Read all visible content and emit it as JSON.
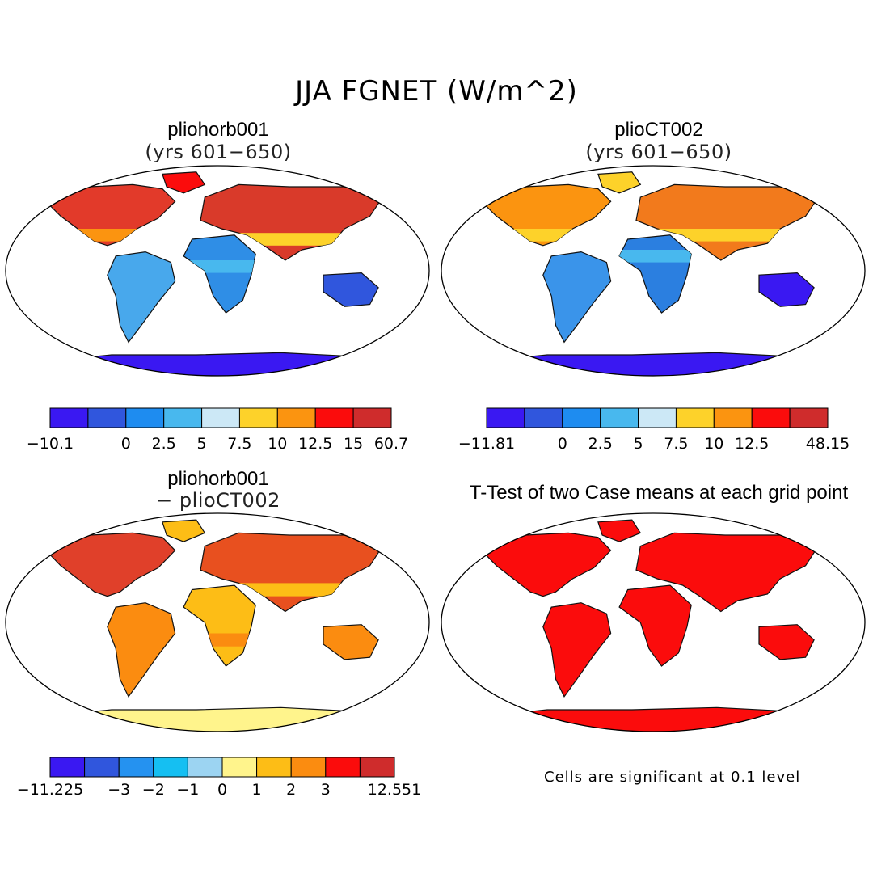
{
  "main_title": "JJA FGNET (W/m^2)",
  "panels": [
    {
      "title": "pliohorb001",
      "subtitle": "(yrs 601−650)",
      "style": "tl"
    },
    {
      "title": "plioCT002",
      "subtitle": "(yrs 601−650)",
      "style": "tr"
    },
    {
      "title": "pliohorb001",
      "subtitle": "− plioCT002",
      "style": "bl"
    },
    {
      "title": "T-Test of two Case means at each grid point",
      "subtitle": "",
      "style": "br"
    }
  ],
  "colorbars": [
    {
      "colors": [
        "#3a18f2",
        "#3056dd",
        "#1e8cf0",
        "#48b8ee",
        "#cce8f6",
        "#fdd22a",
        "#fb9410",
        "#fb0c0c",
        "#cf2c2c"
      ],
      "labels": [
        "−10.1",
        "",
        "0",
        "2.5",
        "5",
        "7.5",
        "10",
        "12.5",
        "15",
        "60.7"
      ]
    },
    {
      "colors": [
        "#3a18f2",
        "#3056dd",
        "#1e8cf0",
        "#48b8ee",
        "#cce8f6",
        "#fdd22a",
        "#fb9410",
        "#fb0c0c",
        "#cf2c2c"
      ],
      "labels": [
        "−11.81",
        "",
        "0",
        "2.5",
        "5",
        "7.5",
        "10",
        "12.5",
        "",
        "48.15"
      ]
    },
    {
      "colors": [
        "#3a18f2",
        "#3056dd",
        "#2592f0",
        "#15bff2",
        "#9cd4f2",
        "#fff48c",
        "#fdbd16",
        "#fb8c10",
        "#fb0c0c",
        "#cf2c2c"
      ],
      "labels": [
        "−11.225",
        "",
        "−3",
        "−2",
        "−1",
        "0",
        "1",
        "2",
        "3",
        "",
        "12.551"
      ]
    }
  ],
  "footnote": "Cells are significant at 0.1 level"
}
